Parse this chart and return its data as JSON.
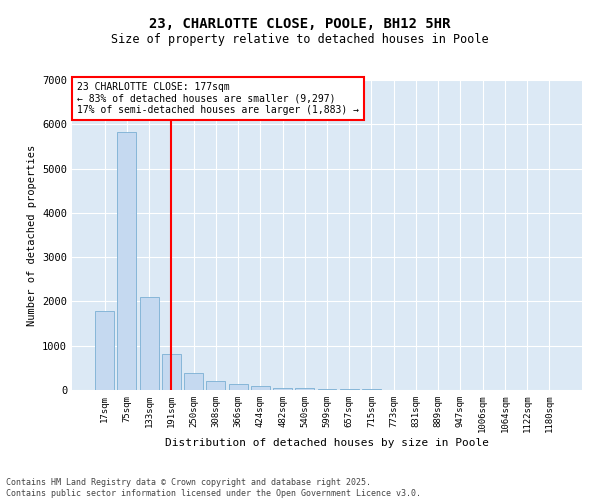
{
  "title": "23, CHARLOTTE CLOSE, POOLE, BH12 5HR",
  "subtitle": "Size of property relative to detached houses in Poole",
  "xlabel": "Distribution of detached houses by size in Poole",
  "ylabel": "Number of detached properties",
  "bar_color": "#c5d9f0",
  "bar_edge_color": "#7bafd4",
  "background_color": "#dce9f5",
  "categories": [
    "17sqm",
    "75sqm",
    "133sqm",
    "191sqm",
    "250sqm",
    "308sqm",
    "366sqm",
    "424sqm",
    "482sqm",
    "540sqm",
    "599sqm",
    "657sqm",
    "715sqm",
    "773sqm",
    "831sqm",
    "889sqm",
    "947sqm",
    "1006sqm",
    "1064sqm",
    "1122sqm",
    "1180sqm"
  ],
  "values": [
    1780,
    5820,
    2100,
    810,
    380,
    200,
    130,
    95,
    55,
    38,
    25,
    18,
    12,
    8,
    7,
    7,
    4,
    4,
    2,
    2,
    1
  ],
  "red_line_x": 3,
  "annotation_title": "23 CHARLOTTE CLOSE: 177sqm",
  "annotation_line1": "← 83% of detached houses are smaller (9,297)",
  "annotation_line2": "17% of semi-detached houses are larger (1,883) →",
  "footer_line1": "Contains HM Land Registry data © Crown copyright and database right 2025.",
  "footer_line2": "Contains public sector information licensed under the Open Government Licence v3.0.",
  "ylim": [
    0,
    7000
  ],
  "yticks": [
    0,
    1000,
    2000,
    3000,
    4000,
    5000,
    6000,
    7000
  ]
}
